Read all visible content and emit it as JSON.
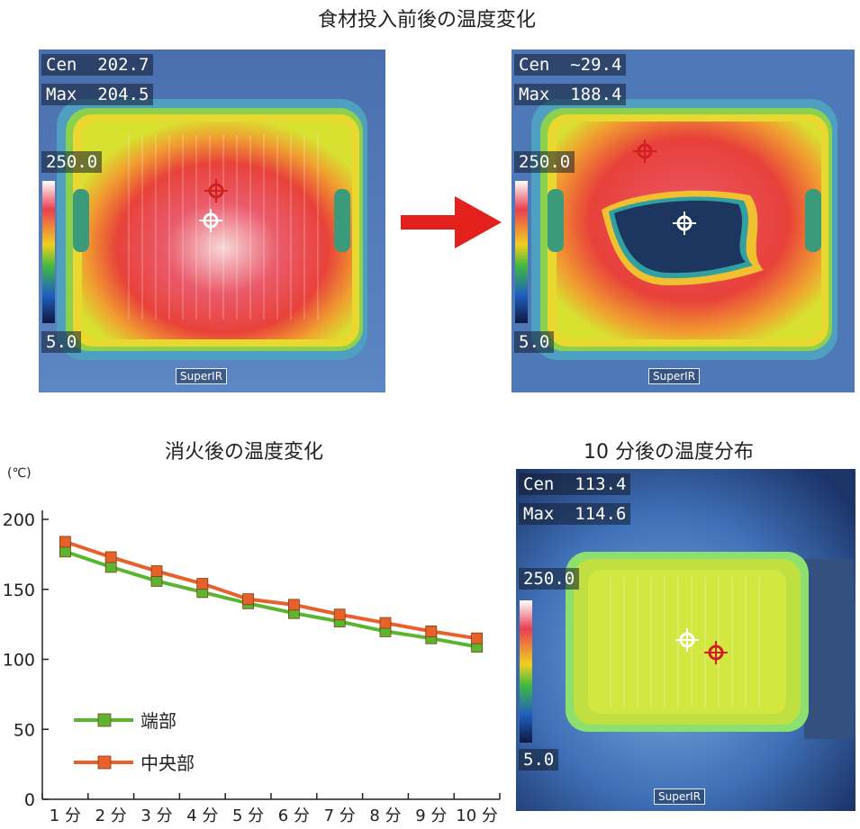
{
  "top_title": "食材投入前後の温度変化",
  "bottom_left_title": "消火後の温度変化",
  "bottom_right_title": "10 分後の温度分布",
  "images": [
    {
      "cen_label": "Cen",
      "cen_value": "202.7",
      "max_label": "Max",
      "max_value": "204.5",
      "scale_max": "250.0",
      "scale_min": "5.0",
      "brand": "SuperIR"
    },
    {
      "cen_label": "Cen",
      "cen_value": "~29.4",
      "max_label": "Max",
      "max_value": "188.4",
      "scale_max": "250.0",
      "scale_min": "5.0",
      "brand": "SuperIR"
    },
    {
      "cen_label": "Cen",
      "cen_value": "113.4",
      "max_label": "Max",
      "max_value": "114.6",
      "scale_max": "250.0",
      "scale_min": "5.0",
      "brand": "SuperIR"
    }
  ],
  "colors": {
    "arrow": "#e2201c",
    "edge_series": "#5cb531",
    "center_series": "#e8612c"
  },
  "chart_data": {
    "type": "line",
    "title": "消火後の温度変化",
    "ylabel": "(℃)",
    "xlabel": "",
    "categories": [
      "1 分",
      "2 分",
      "3 分",
      "4 分",
      "5 分",
      "6 分",
      "7 分",
      "8 分",
      "9 分",
      "10 分"
    ],
    "ylim": [
      0,
      200
    ],
    "yticks": [
      "0",
      "50",
      "100",
      "150",
      "200"
    ],
    "series": [
      {
        "name": "端部",
        "values": [
          177,
          166,
          156,
          148,
          140,
          133,
          127,
          120,
          115,
          109
        ]
      },
      {
        "name": "中央部",
        "values": [
          184,
          173,
          163,
          154,
          143,
          139,
          132,
          126,
          120,
          115
        ]
      }
    ],
    "legend_position": "bottom-left"
  }
}
